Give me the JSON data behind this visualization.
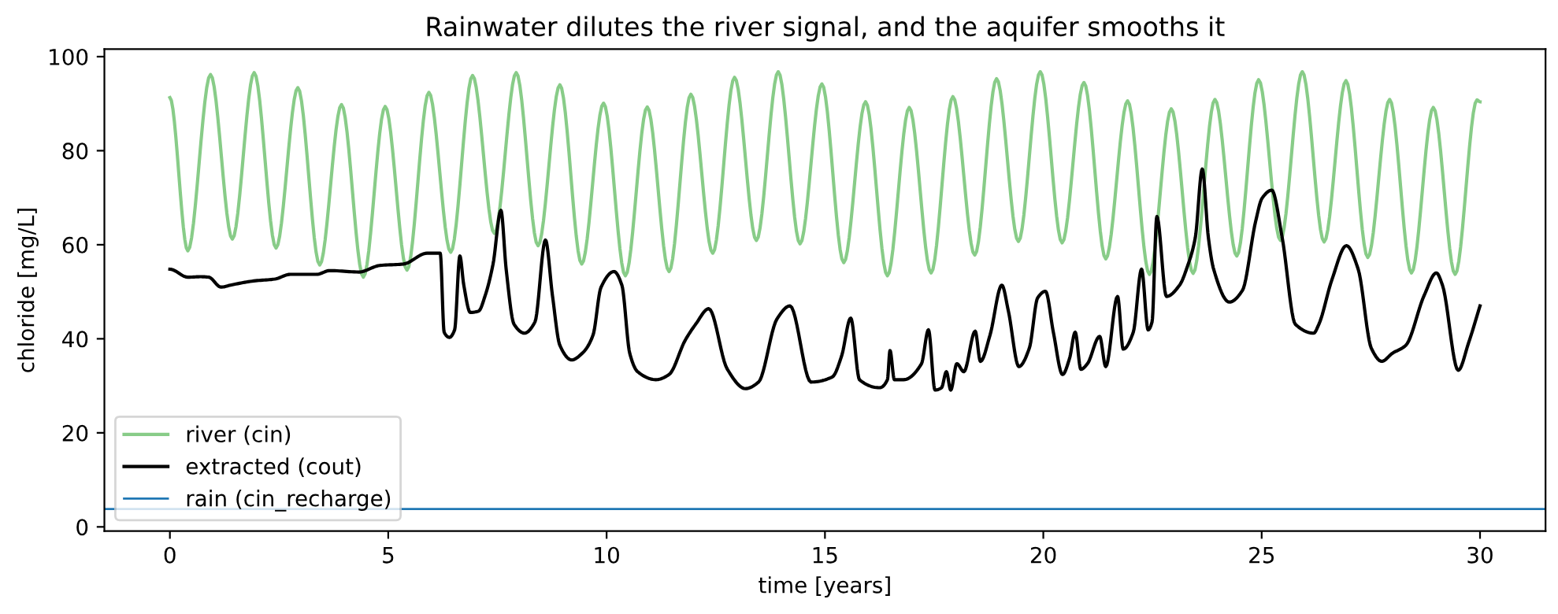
{
  "chart_data": {
    "type": "line",
    "title": "Rainwater dilutes the river signal, and the aquifer smooths it",
    "xlabel": "time [years]",
    "ylabel": "chloride [mg/L]",
    "xlim": [
      -1.5,
      31.5
    ],
    "ylim": [
      -0.9,
      101.6
    ],
    "xticks": [
      0,
      5,
      10,
      15,
      20,
      25,
      30
    ],
    "yticks": [
      0,
      20,
      40,
      60,
      80,
      100
    ],
    "grid": false,
    "legend": "bottom left",
    "series": [
      {
        "name": "river (cin)",
        "color": "#88cc88",
        "x": [
          0,
          0.41,
          0.93,
          1.43,
          1.93,
          2.43,
          2.93,
          3.43,
          3.93,
          4.43,
          4.93,
          5.43,
          5.93,
          6.43,
          6.93,
          7.43,
          7.93,
          8.43,
          8.93,
          9.43,
          9.93,
          10.43,
          10.93,
          11.43,
          11.93,
          12.43,
          12.93,
          13.43,
          13.93,
          14.43,
          14.93,
          15.43,
          15.93,
          16.43,
          16.93,
          17.43,
          17.93,
          18.43,
          18.93,
          19.43,
          19.93,
          20.43,
          20.93,
          21.43,
          21.93,
          22.43,
          22.93,
          23.43,
          23.93,
          24.43,
          24.93,
          25.43,
          25.93,
          26.43,
          26.93,
          27.43,
          27.93,
          28.43,
          28.93,
          29.43,
          29.93,
          30
        ],
        "values": [
          91.3,
          58.7,
          96.2,
          61.2,
          96.6,
          59.3,
          93.4,
          55.7,
          89.8,
          53.1,
          89.4,
          54.6,
          92.4,
          58.4,
          96.0,
          62.4,
          96.6,
          59.8,
          94.0,
          55.9,
          90.1,
          53.4,
          89.3,
          54.3,
          92.0,
          58.2,
          95.6,
          60.9,
          96.8,
          60.2,
          94.2,
          56.2,
          90.4,
          53.4,
          89.2,
          54.0,
          91.5,
          57.8,
          95.3,
          60.7,
          96.8,
          60.4,
          94.5,
          57.0,
          90.6,
          53.7,
          88.9,
          53.9,
          90.9,
          57.6,
          95.1,
          60.9,
          96.8,
          60.6,
          94.9,
          57.3,
          90.9,
          54.0,
          89.2,
          53.7,
          90.8,
          90.4
        ]
      },
      {
        "name": "extracted (cout)",
        "color": "#000000",
        "x": [
          0,
          0.41,
          0.71,
          0.89,
          1.17,
          1.43,
          1.92,
          2.4,
          2.76,
          3.36,
          3.66,
          4.33,
          4.81,
          5.35,
          5.89,
          6.19,
          6.28,
          6.4,
          6.52,
          6.64,
          6.73,
          6.88,
          7.07,
          7.22,
          7.4,
          7.58,
          7.7,
          7.88,
          8.12,
          8.36,
          8.6,
          8.76,
          8.93,
          9.2,
          9.44,
          9.69,
          9.87,
          10.17,
          10.35,
          10.53,
          10.71,
          11.13,
          11.43,
          11.8,
          12.04,
          12.34,
          12.76,
          13.18,
          13.48,
          13.9,
          14.2,
          14.68,
          15.17,
          15.38,
          15.59,
          15.79,
          16.25,
          16.43,
          16.49,
          16.59,
          16.8,
          17.21,
          17.37,
          17.52,
          17.67,
          17.78,
          17.88,
          18.02,
          18.18,
          18.44,
          18.56,
          18.78,
          19.05,
          19.2,
          19.44,
          19.68,
          19.87,
          20.05,
          20.23,
          20.44,
          20.6,
          20.73,
          20.86,
          21.01,
          21.29,
          21.43,
          21.7,
          21.83,
          22.06,
          22.25,
          22.4,
          22.49,
          22.6,
          22.82,
          23.12,
          23.3,
          23.48,
          23.64,
          23.78,
          23.9,
          24.26,
          24.56,
          24.86,
          25.01,
          25.23,
          25.47,
          25.77,
          26.19,
          26.31,
          26.61,
          26.94,
          27.21,
          27.51,
          27.75,
          27.99,
          28.3,
          28.72,
          29.0,
          29.14,
          29.5,
          29.74,
          30
        ],
        "values": [
          54.8,
          53.1,
          53.2,
          53.1,
          51.0,
          51.5,
          52.3,
          52.7,
          53.7,
          53.7,
          54.5,
          54.2,
          55.6,
          55.9,
          58.2,
          58.2,
          41.4,
          40.3,
          41.9,
          57.6,
          51.4,
          45.6,
          45.9,
          49.2,
          55.9,
          67.3,
          54.8,
          43.1,
          41.2,
          43.6,
          61.0,
          49.2,
          38.6,
          35.5,
          36.9,
          40.8,
          50.9,
          54.3,
          51.4,
          36.9,
          33.0,
          31.3,
          32.4,
          39.7,
          43.1,
          46.4,
          33.6,
          29.4,
          30.8,
          44.2,
          47.0,
          30.8,
          31.9,
          36.3,
          44.4,
          31.3,
          29.6,
          31.3,
          37.5,
          31.3,
          31.3,
          34.7,
          41.9,
          29.1,
          29.6,
          33.0,
          29.1,
          34.7,
          33.0,
          41.6,
          35.2,
          40.8,
          51.4,
          45.9,
          34.1,
          38.0,
          48.7,
          50.1,
          41.4,
          32.4,
          35.8,
          41.4,
          33.5,
          34.7,
          40.5,
          34.1,
          49.0,
          37.8,
          41.4,
          54.8,
          41.9,
          43.6,
          66.0,
          49.0,
          51.4,
          55.4,
          61.5,
          76.1,
          61.5,
          54.8,
          47.8,
          50.3,
          64.9,
          69.9,
          71.6,
          61.5,
          43.1,
          41.2,
          43.1,
          52.6,
          59.8,
          54.8,
          38.0,
          35.2,
          36.9,
          38.6,
          49.2,
          54.0,
          51.4,
          33.3,
          39.2,
          47.0
        ]
      },
      {
        "name": "rain (cin_recharge)",
        "color": "#1f77b4",
        "x": [
          -1.5,
          31.5
        ],
        "values": [
          3.8,
          3.8
        ]
      }
    ]
  }
}
